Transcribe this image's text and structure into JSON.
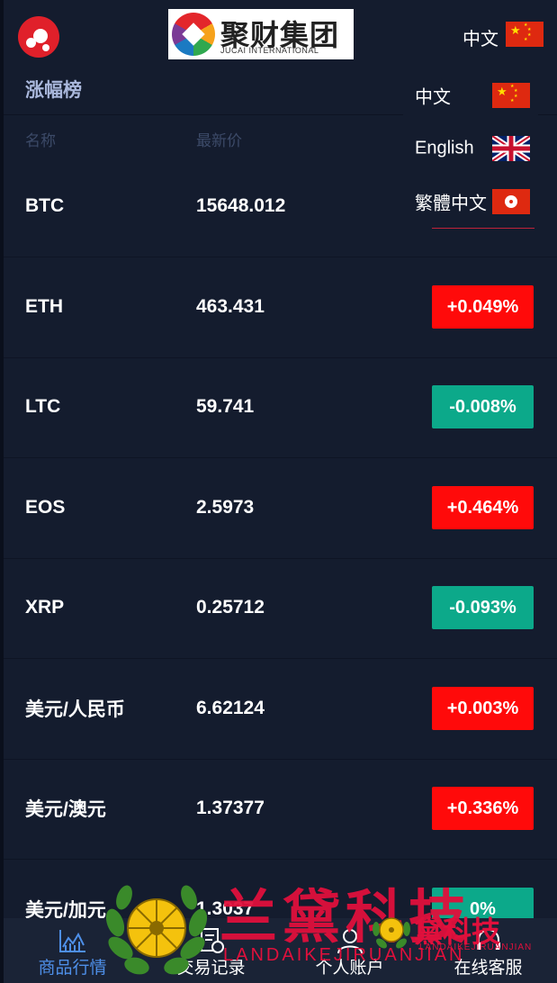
{
  "header": {
    "logo_text_cn": "聚财集团",
    "logo_text_en": "JUCAI INTERNATIONAL",
    "current_language": "中文"
  },
  "section": {
    "title": "涨幅榜",
    "col_name": "名称",
    "col_price": "最新价"
  },
  "language_menu": [
    {
      "label": "中文",
      "flag": "china-flag-icon"
    },
    {
      "label": "English",
      "flag": "uk-flag-icon"
    },
    {
      "label": "繁體中文",
      "flag": "hongkong-flag-icon"
    }
  ],
  "rows": [
    {
      "name": "BTC",
      "price": "15648.012",
      "change": "",
      "direction": "none"
    },
    {
      "name": "ETH",
      "price": "463.431",
      "change": "+0.049%",
      "direction": "up"
    },
    {
      "name": "LTC",
      "price": "59.741",
      "change": "-0.008%",
      "direction": "down"
    },
    {
      "name": "EOS",
      "price": "2.5973",
      "change": "+0.464%",
      "direction": "up"
    },
    {
      "name": "XRP",
      "price": "0.25712",
      "change": "-0.093%",
      "direction": "down"
    },
    {
      "name": "美元/人民币",
      "price": "6.62124",
      "change": "+0.003%",
      "direction": "up"
    },
    {
      "name": "美元/澳元",
      "price": "1.37377",
      "change": "+0.336%",
      "direction": "up"
    },
    {
      "name": "美元/加元",
      "price": "1.3037",
      "change": "0%",
      "direction": "down"
    }
  ],
  "colors": {
    "up": "#ff0a0a",
    "down": "#0ca98a",
    "background": "#141c2e",
    "active_tab": "#4e8fe8"
  },
  "bottom_nav": [
    {
      "label": "商品行情",
      "icon": "chart-icon",
      "active": true
    },
    {
      "label": "交易记录",
      "icon": "document-clock-icon",
      "active": false
    },
    {
      "label": "个人账户",
      "icon": "user-icon",
      "active": false
    },
    {
      "label": "在线客服",
      "icon": "headset-icon",
      "active": false
    }
  ],
  "watermark": {
    "big_cn": "兰黛科技",
    "big_en": "LANDAIKEJIRUANJIAN",
    "small_cn": "黛科技",
    "small_en": "LANDAIKEJIRUANJIAN"
  }
}
